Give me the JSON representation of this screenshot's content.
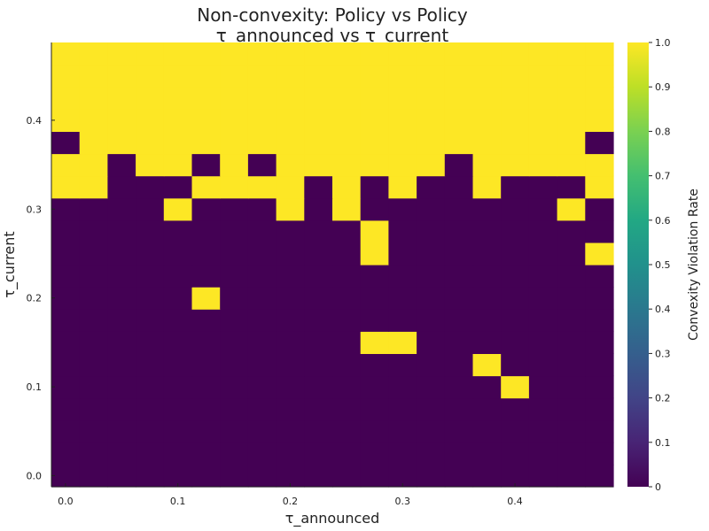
{
  "chart_data": {
    "type": "heatmap",
    "title": "Non-convexity: Policy vs Policy",
    "subtitle": "τ_announced vs τ_current",
    "xlabel": "τ_announced",
    "ylabel": "τ_current",
    "xlim": [
      -0.0125,
      0.4875
    ],
    "ylim": [
      -0.0125,
      0.4875
    ],
    "x_ticks": [
      "0.0",
      "0.1",
      "0.2",
      "0.3",
      "0.4"
    ],
    "x_tick_values": [
      0,
      0.1,
      0.2,
      0.3,
      0.4
    ],
    "y_ticks": [
      "0.0",
      "0.1",
      "0.2",
      "0.3",
      "0.4"
    ],
    "y_tick_values": [
      0,
      0.1,
      0.2,
      0.3,
      0.4
    ],
    "x": [
      0,
      0.025,
      0.05,
      0.075,
      0.1,
      0.125,
      0.15,
      0.175,
      0.2,
      0.225,
      0.25,
      0.275,
      0.3,
      0.325,
      0.35,
      0.375,
      0.4,
      0.425,
      0.45,
      0.475
    ],
    "y": [
      0,
      0.025,
      0.05,
      0.075,
      0.1,
      0.125,
      0.15,
      0.175,
      0.2,
      0.225,
      0.25,
      0.275,
      0.3,
      0.325,
      0.35,
      0.375,
      0.4,
      0.425,
      0.45,
      0.475
    ],
    "colorbar": {
      "label": "Convexity Violation Rate",
      "range": [
        0,
        1
      ],
      "ticks": [
        "0",
        "0.1",
        "0.2",
        "0.3",
        "0.4",
        "0.5",
        "0.6",
        "0.7",
        "0.8",
        "0.9",
        "1.0"
      ],
      "tick_values": [
        0,
        0.1,
        0.2,
        0.3,
        0.4,
        0.5,
        0.6,
        0.7,
        0.8,
        0.9,
        1.0
      ],
      "colormap": "viridis"
    },
    "grid": false,
    "z": [
      [
        0,
        0,
        0,
        0,
        0,
        0,
        0,
        0,
        0,
        0,
        0,
        0,
        0,
        0,
        0,
        0,
        0,
        0,
        0,
        0
      ],
      [
        0,
        0,
        0,
        0,
        0,
        0,
        0,
        0,
        0,
        0,
        0,
        0,
        0,
        0,
        0,
        0,
        0,
        0,
        0,
        0
      ],
      [
        0,
        0,
        0,
        0,
        0,
        0,
        0,
        0,
        0,
        0,
        0,
        0,
        0,
        0,
        0,
        0,
        0,
        0,
        0,
        0
      ],
      [
        0,
        0,
        0,
        0,
        0,
        0,
        0,
        0,
        0,
        0,
        0,
        0,
        0,
        0,
        0,
        0,
        0,
        0,
        0,
        0
      ],
      [
        0,
        0,
        0,
        0,
        0,
        0,
        0,
        0,
        0,
        0,
        0,
        0,
        0,
        0,
        0,
        0,
        1,
        0,
        0,
        0
      ],
      [
        0,
        0,
        0,
        0,
        0,
        0,
        0,
        0,
        0,
        0,
        0,
        0,
        0,
        0,
        0,
        1,
        0,
        0,
        0,
        0
      ],
      [
        0,
        0,
        0,
        0,
        0,
        0,
        0,
        0,
        0,
        0,
        0,
        1,
        1,
        0,
        0,
        0,
        0,
        0,
        0,
        0
      ],
      [
        0,
        0,
        0,
        0,
        0,
        0,
        0,
        0,
        0,
        0,
        0,
        0,
        0,
        0,
        0,
        0,
        0,
        0,
        0,
        0
      ],
      [
        0,
        0,
        0,
        0,
        0,
        1,
        0,
        0,
        0,
        0,
        0,
        0,
        0,
        0,
        0,
        0,
        0,
        0,
        0,
        0
      ],
      [
        0,
        0,
        0,
        0,
        0,
        0,
        0,
        0,
        0,
        0,
        0,
        0,
        0,
        0,
        0,
        0,
        0,
        0,
        0,
        0
      ],
      [
        0,
        0,
        0,
        0,
        0,
        0,
        0,
        0,
        0,
        0,
        0,
        1,
        0,
        0,
        0,
        0,
        0,
        0,
        0,
        1
      ],
      [
        0,
        0,
        0,
        0,
        0,
        0,
        0,
        0,
        0,
        0,
        0,
        1,
        0,
        0,
        0,
        0,
        0,
        0,
        0,
        0
      ],
      [
        0,
        0,
        0,
        0,
        1,
        0,
        0,
        0,
        1,
        0,
        1,
        0,
        0,
        0,
        0,
        0,
        0,
        0,
        1,
        0
      ],
      [
        1,
        1,
        0,
        0,
        0,
        1,
        1,
        1,
        1,
        0,
        1,
        0,
        1,
        0,
        0,
        1,
        0,
        0,
        0,
        1
      ],
      [
        1,
        1,
        0,
        1,
        1,
        0,
        1,
        0,
        1,
        1,
        1,
        1,
        1,
        1,
        0,
        1,
        1,
        1,
        1,
        1
      ],
      [
        0,
        1,
        1,
        1,
        1,
        1,
        1,
        1,
        1,
        1,
        1,
        1,
        1,
        1,
        1,
        1,
        1,
        1,
        1,
        0
      ],
      [
        1,
        1,
        1,
        1,
        1,
        1,
        1,
        1,
        1,
        1,
        1,
        1,
        1,
        1,
        1,
        1,
        1,
        1,
        1,
        1
      ],
      [
        1,
        1,
        1,
        1,
        1,
        1,
        1,
        1,
        1,
        1,
        1,
        1,
        1,
        1,
        1,
        1,
        1,
        1,
        1,
        1
      ],
      [
        1,
        1,
        1,
        1,
        1,
        1,
        1,
        1,
        1,
        1,
        1,
        1,
        1,
        1,
        1,
        1,
        1,
        1,
        1,
        1
      ],
      [
        1,
        1,
        1,
        1,
        1,
        1,
        1,
        1,
        1,
        1,
        1,
        1,
        1,
        1,
        1,
        1,
        1,
        1,
        1,
        1
      ]
    ]
  }
}
